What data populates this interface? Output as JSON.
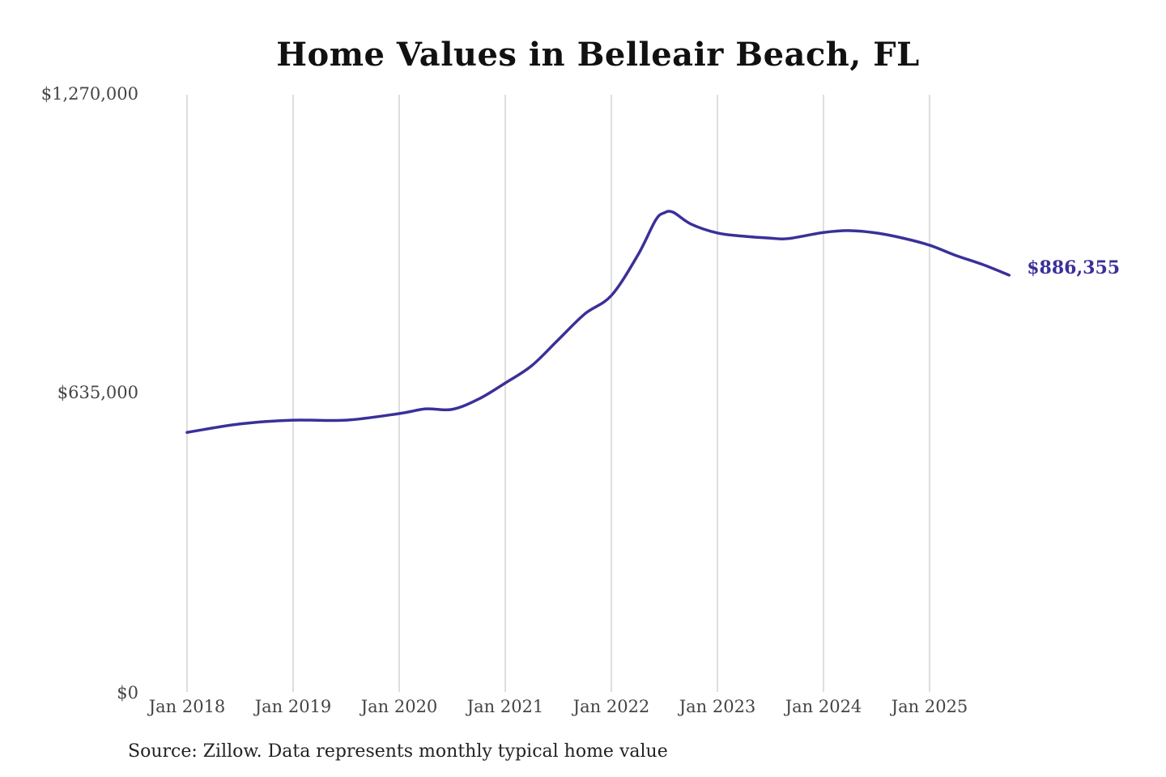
{
  "chart_data": {
    "type": "line",
    "title": "Home Values in Belleair Beach, FL",
    "xlabel": "",
    "ylabel": "",
    "ylim": [
      0,
      1270000
    ],
    "y_ticks": [
      0,
      635000,
      1270000
    ],
    "y_tick_labels": [
      "$0",
      "$635,000",
      "$1,270,000"
    ],
    "x_tick_labels": [
      "Jan 2018",
      "Jan 2019",
      "Jan 2020",
      "Jan 2021",
      "Jan 2022",
      "Jan 2023",
      "Jan 2024",
      "Jan 2025"
    ],
    "x_ticks": [
      "2018-01",
      "2019-01",
      "2020-01",
      "2021-01",
      "2022-01",
      "2023-01",
      "2024-01",
      "2025-01"
    ],
    "grid": "vertical",
    "line_color": "#3a3099",
    "series": [
      {
        "x": [
          "2018-01",
          "2018-07",
          "2019-01",
          "2019-07",
          "2020-01",
          "2020-04",
          "2020-07",
          "2020-10",
          "2021-01",
          "2021-04",
          "2021-07",
          "2021-10",
          "2022-01",
          "2022-04",
          "2022-06",
          "2022-07",
          "2022-08",
          "2022-10",
          "2023-01",
          "2023-04",
          "2023-07",
          "2023-09",
          "2024-01",
          "2024-04",
          "2024-07",
          "2024-10",
          "2025-01",
          "2025-04",
          "2025-07",
          "2025-10"
        ],
        "values": [
          552000,
          570000,
          578000,
          578000,
          592000,
          602000,
          601000,
          623000,
          657000,
          694000,
          749000,
          804000,
          843000,
          929000,
          1003000,
          1019000,
          1020000,
          995000,
          976000,
          969000,
          965000,
          964000,
          977000,
          981000,
          976000,
          965000,
          950000,
          928000,
          909000,
          886355
        ]
      }
    ],
    "end_label": "$886,355"
  },
  "source": "Source: Zillow. Data represents monthly typical home value"
}
